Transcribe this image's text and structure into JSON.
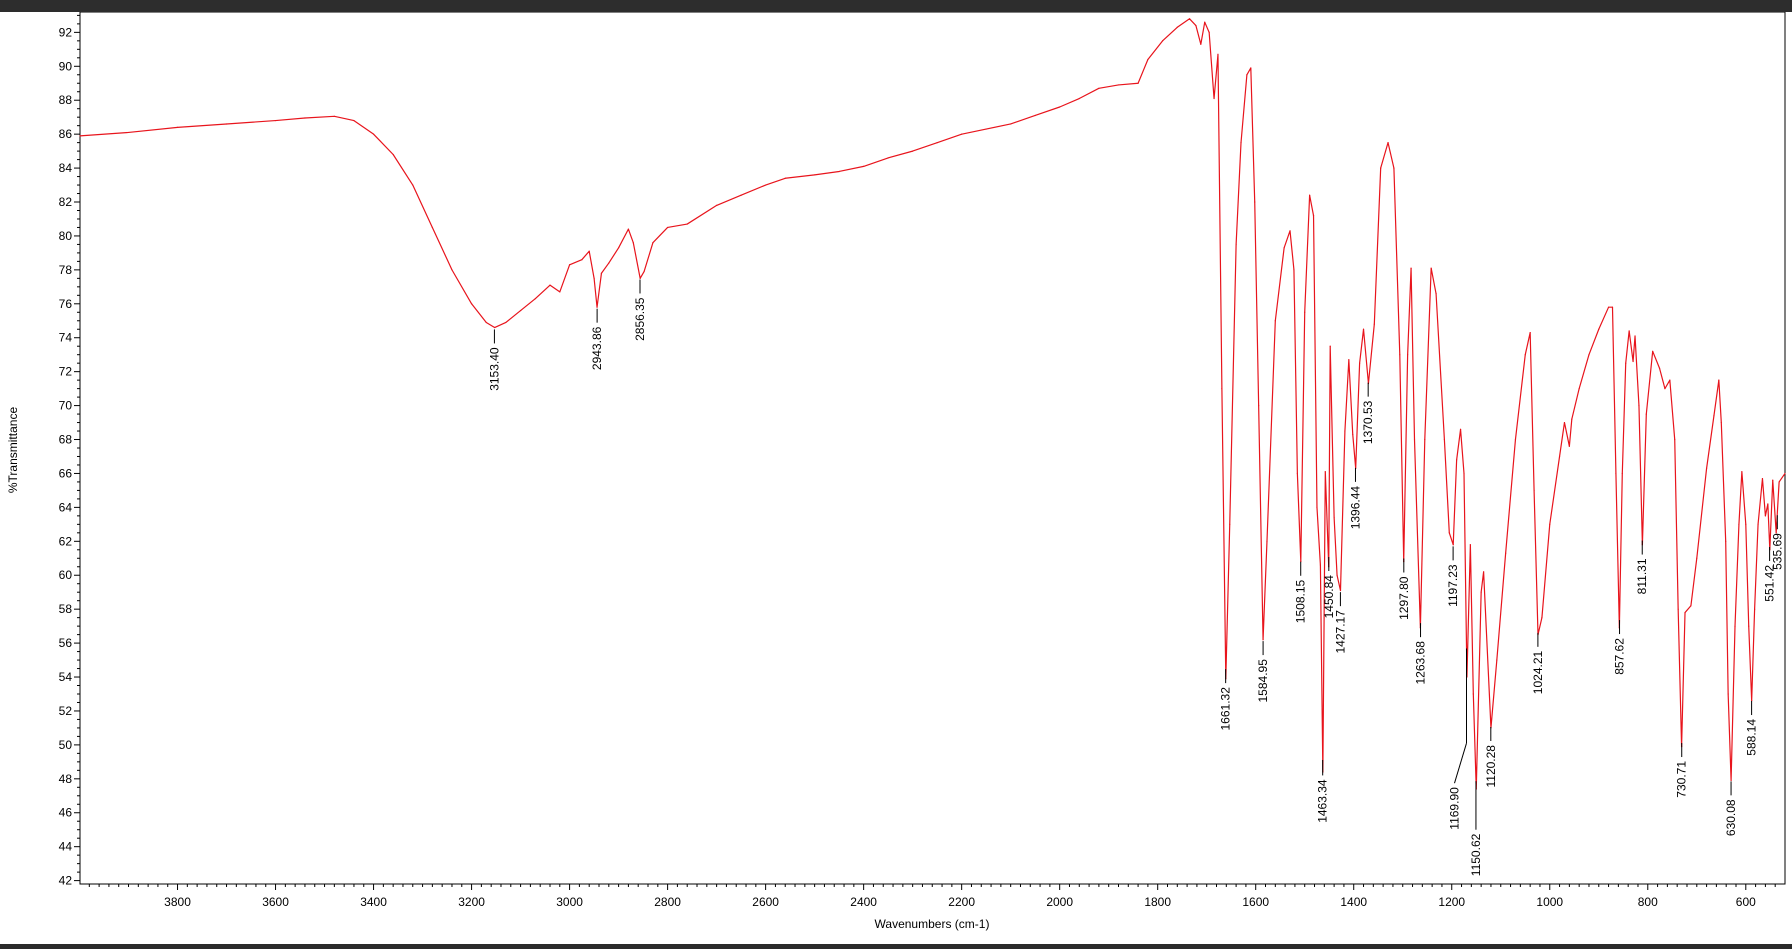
{
  "chart_data": {
    "type": "line",
    "title": "",
    "xlabel": "Wavenumbers (cm-1)",
    "ylabel": "%Transmittance",
    "xlim": [
      3999,
      520
    ],
    "ylim": [
      41.8,
      93.2
    ],
    "x_ticks": [
      3800,
      3600,
      3400,
      3200,
      3000,
      2800,
      2600,
      2400,
      2200,
      2000,
      1800,
      1600,
      1400,
      1200,
      1000,
      800,
      600
    ],
    "y_ticks": [
      42,
      44,
      46,
      48,
      50,
      52,
      54,
      56,
      58,
      60,
      62,
      64,
      66,
      68,
      70,
      72,
      74,
      76,
      78,
      80,
      82,
      84,
      86,
      88,
      90,
      92
    ],
    "grid": false,
    "line_color": "#e8141c",
    "series": [
      {
        "points": [
          [
            3999,
            85.9
          ],
          [
            3900,
            86.1
          ],
          [
            3800,
            86.4
          ],
          [
            3700,
            86.6
          ],
          [
            3600,
            86.8
          ],
          [
            3540,
            86.95
          ],
          [
            3480,
            87.05
          ],
          [
            3440,
            86.8
          ],
          [
            3400,
            86.0
          ],
          [
            3360,
            84.8
          ],
          [
            3320,
            83.0
          ],
          [
            3280,
            80.5
          ],
          [
            3240,
            78.0
          ],
          [
            3200,
            76.0
          ],
          [
            3170,
            74.9
          ],
          [
            3153,
            74.6
          ],
          [
            3130,
            74.9
          ],
          [
            3100,
            75.6
          ],
          [
            3070,
            76.3
          ],
          [
            3040,
            77.1
          ],
          [
            3020,
            76.7
          ],
          [
            3000,
            78.3
          ],
          [
            2975,
            78.6
          ],
          [
            2960,
            79.1
          ],
          [
            2950,
            77.5
          ],
          [
            2944,
            75.8
          ],
          [
            2935,
            77.8
          ],
          [
            2920,
            78.4
          ],
          [
            2900,
            79.3
          ],
          [
            2880,
            80.4
          ],
          [
            2870,
            79.6
          ],
          [
            2856,
            77.5
          ],
          [
            2848,
            77.9
          ],
          [
            2830,
            79.6
          ],
          [
            2800,
            80.5
          ],
          [
            2760,
            80.7
          ],
          [
            2700,
            81.8
          ],
          [
            2650,
            82.4
          ],
          [
            2600,
            83.0
          ],
          [
            2560,
            83.4
          ],
          [
            2500,
            83.6
          ],
          [
            2450,
            83.8
          ],
          [
            2400,
            84.1
          ],
          [
            2350,
            84.6
          ],
          [
            2300,
            85.0
          ],
          [
            2250,
            85.5
          ],
          [
            2200,
            86.0
          ],
          [
            2150,
            86.3
          ],
          [
            2100,
            86.6
          ],
          [
            2050,
            87.1
          ],
          [
            2000,
            87.6
          ],
          [
            1960,
            88.1
          ],
          [
            1920,
            88.7
          ],
          [
            1880,
            88.9
          ],
          [
            1840,
            89.0
          ],
          [
            1820,
            90.4
          ],
          [
            1790,
            91.5
          ],
          [
            1760,
            92.3
          ],
          [
            1735,
            92.8
          ],
          [
            1722,
            92.4
          ],
          [
            1712,
            91.3
          ],
          [
            1704,
            92.6
          ],
          [
            1695,
            92.0
          ],
          [
            1685,
            88.1
          ],
          [
            1677,
            90.7
          ],
          [
            1669,
            71.0
          ],
          [
            1661,
            53.9
          ],
          [
            1653,
            63.0
          ],
          [
            1640,
            79.5
          ],
          [
            1630,
            85.5
          ],
          [
            1618,
            89.5
          ],
          [
            1610,
            89.9
          ],
          [
            1602,
            82.0
          ],
          [
            1594,
            70.0
          ],
          [
            1585,
            56.2
          ],
          [
            1577,
            62.0
          ],
          [
            1560,
            75.0
          ],
          [
            1542,
            79.3
          ],
          [
            1530,
            80.3
          ],
          [
            1522,
            78.0
          ],
          [
            1515,
            66.0
          ],
          [
            1508,
            60.8
          ],
          [
            1500,
            75.5
          ],
          [
            1490,
            82.4
          ],
          [
            1482,
            81.2
          ],
          [
            1475,
            64.0
          ],
          [
            1468,
            60.6
          ],
          [
            1463,
            48.4
          ],
          [
            1458,
            66.1
          ],
          [
            1451,
            60.5
          ],
          [
            1448,
            73.5
          ],
          [
            1440,
            63.4
          ],
          [
            1434,
            60.0
          ],
          [
            1427,
            59.1
          ],
          [
            1418,
            68.5
          ],
          [
            1410,
            72.7
          ],
          [
            1402,
            68.3
          ],
          [
            1396,
            66.3
          ],
          [
            1388,
            72.5
          ],
          [
            1380,
            74.5
          ],
          [
            1370,
            71.3
          ],
          [
            1358,
            74.8
          ],
          [
            1345,
            84.0
          ],
          [
            1330,
            85.5
          ],
          [
            1318,
            84.0
          ],
          [
            1306,
            73.0
          ],
          [
            1298,
            60.8
          ],
          [
            1290,
            73.0
          ],
          [
            1283,
            78.1
          ],
          [
            1276,
            68.0
          ],
          [
            1264,
            56.9
          ],
          [
            1255,
            68.0
          ],
          [
            1242,
            78.1
          ],
          [
            1232,
            76.6
          ],
          [
            1215,
            68.0
          ],
          [
            1205,
            62.5
          ],
          [
            1197,
            61.8
          ],
          [
            1190,
            66.8
          ],
          [
            1182,
            68.6
          ],
          [
            1175,
            66.0
          ],
          [
            1169,
            54.0
          ],
          [
            1162,
            61.8
          ],
          [
            1156,
            53.0
          ],
          [
            1150,
            47.4
          ],
          [
            1140,
            59.0
          ],
          [
            1135,
            60.2
          ],
          [
            1120,
            51.0
          ],
          [
            1108,
            55.0
          ],
          [
            1090,
            61.3
          ],
          [
            1070,
            68.0
          ],
          [
            1050,
            73.0
          ],
          [
            1040,
            74.3
          ],
          [
            1032,
            65.0
          ],
          [
            1024,
            56.5
          ],
          [
            1016,
            57.5
          ],
          [
            1000,
            63.0
          ],
          [
            980,
            67.0
          ],
          [
            970,
            69.0
          ],
          [
            960,
            67.6
          ],
          [
            955,
            69.2
          ],
          [
            940,
            71.0
          ],
          [
            920,
            73.0
          ],
          [
            900,
            74.5
          ],
          [
            880,
            75.8
          ],
          [
            872,
            75.8
          ],
          [
            865,
            66.0
          ],
          [
            858,
            56.9
          ],
          [
            852,
            66.0
          ],
          [
            845,
            72.5
          ],
          [
            838,
            74.4
          ],
          [
            830,
            72.6
          ],
          [
            826,
            74.1
          ],
          [
            818,
            70.0
          ],
          [
            811,
            61.8
          ],
          [
            803,
            69.5
          ],
          [
            790,
            73.2
          ],
          [
            776,
            72.2
          ],
          [
            765,
            71.0
          ],
          [
            755,
            71.5
          ],
          [
            745,
            68.0
          ],
          [
            738,
            58.0
          ],
          [
            731,
            49.9
          ],
          [
            724,
            57.8
          ],
          [
            712,
            58.2
          ],
          [
            700,
            61.0
          ],
          [
            680,
            66.3
          ],
          [
            665,
            69.4
          ],
          [
            655,
            71.5
          ],
          [
            650,
            69.0
          ],
          [
            641,
            62.0
          ],
          [
            636,
            53.0
          ],
          [
            630,
            47.9
          ],
          [
            622,
            57.0
          ],
          [
            614,
            63.0
          ],
          [
            608,
            66.1
          ],
          [
            600,
            63.0
          ],
          [
            594,
            57.0
          ],
          [
            588,
            52.6
          ],
          [
            582,
            58.0
          ],
          [
            575,
            63.0
          ],
          [
            566,
            65.7
          ],
          [
            560,
            63.5
          ],
          [
            555,
            64.2
          ],
          [
            551,
            61.5
          ],
          [
            545,
            65.6
          ],
          [
            538,
            62.5
          ],
          [
            532,
            65.5
          ],
          [
            520,
            66.0
          ]
        ]
      }
    ],
    "peak_labels": [
      "3153.40",
      "2943.86",
      "2856.35",
      "1661.32",
      "1584.95",
      "1508.15",
      "1463.34",
      "1450.84",
      "1427.17",
      "1396.44",
      "1370.53",
      "1297.80",
      "1263.68",
      "1197.23",
      "1169.90",
      "1150.62",
      "1120.28",
      "1024.21",
      "857.62",
      "811.31",
      "730.71",
      "630.08",
      "588.14",
      "551.42",
      "535.69"
    ]
  }
}
